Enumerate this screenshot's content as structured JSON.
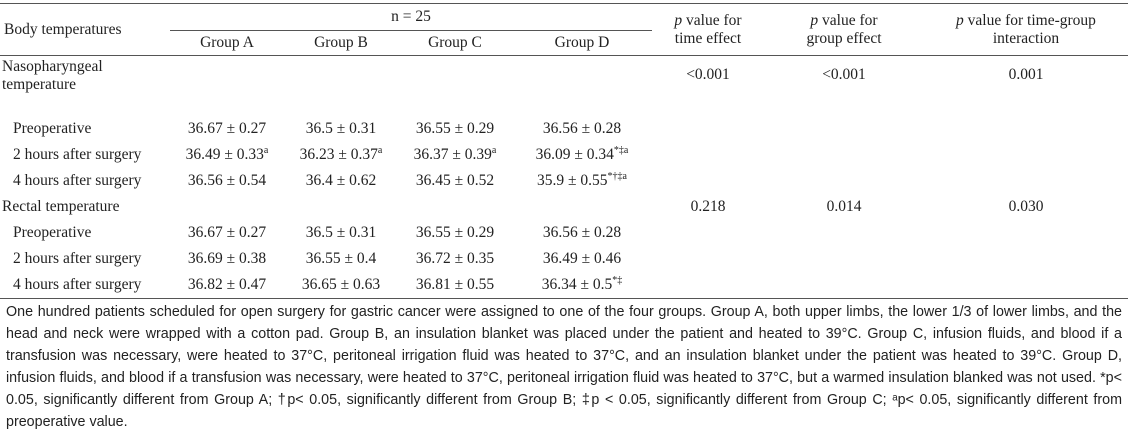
{
  "header": {
    "col0": "Body temperatures",
    "n_label": "n = 25",
    "groups": [
      "Group A",
      "Group B",
      "Group C",
      "Group D"
    ],
    "time_effect": {
      "p": "p",
      "l1": " value for",
      "l2": "time effect"
    },
    "group_effect": {
      "p": "p",
      "l1": " value for",
      "l2": "group effect"
    },
    "interaction": {
      "p": "p",
      "l1": " value for time-group",
      "l2": "interaction"
    }
  },
  "sections": [
    {
      "title_l1": "Nasopharyngeal",
      "title_l2": "temperature",
      "p_time": "<0.001",
      "p_group": "<0.001",
      "p_interaction": "0.001",
      "rows": [
        {
          "label": "Preoperative",
          "a": "36.67 ± 0.27",
          "b": "36.5 ± 0.31",
          "c": "36.55 ± 0.29",
          "d": "36.56 ± 0.28",
          "a_sup": "",
          "b_sup": "",
          "c_sup": "",
          "d_sup": ""
        },
        {
          "label": "2 hours after surgery",
          "a": "36.49 ± 0.33",
          "b": "36.23 ± 0.37",
          "c": "36.37 ± 0.39",
          "d": "36.09 ± 0.34",
          "a_sup": "a",
          "b_sup": "a",
          "c_sup": "a",
          "d_sup": "*‡a"
        },
        {
          "label": "4 hours after surgery",
          "a": "36.56 ± 0.54",
          "b": "36.4 ± 0.62",
          "c": "36.45 ± 0.52",
          "d": "35.9 ± 0.55",
          "a_sup": "",
          "b_sup": "",
          "c_sup": "",
          "d_sup": "*†‡a"
        }
      ]
    },
    {
      "title_l1": "Rectal temperature",
      "title_l2": "",
      "p_time": "0.218",
      "p_group": "0.014",
      "p_interaction": "0.030",
      "rows": [
        {
          "label": "Preoperative",
          "a": "36.67 ± 0.27",
          "b": "36.5 ± 0.31",
          "c": "36.55 ± 0.29",
          "d": "36.56 ± 0.28",
          "a_sup": "",
          "b_sup": "",
          "c_sup": "",
          "d_sup": ""
        },
        {
          "label": "2 hours after surgery",
          "a": "36.69 ± 0.38",
          "b": "36.55 ± 0.4",
          "c": "36.72 ± 0.35",
          "d": "36.49 ± 0.46",
          "a_sup": "",
          "b_sup": "",
          "c_sup": "",
          "d_sup": ""
        },
        {
          "label": "4 hours after surgery",
          "a": "36.82 ± 0.47",
          "b": "36.65 ± 0.63",
          "c": "36.81 ± 0.55",
          "d": "36.34 ± 0.5",
          "a_sup": "",
          "b_sup": "",
          "c_sup": "",
          "d_sup": "*‡"
        }
      ]
    }
  ],
  "footnote": "One hundred patients scheduled for open surgery for gastric cancer were assigned to one of the four groups. Group A, both upper limbs, the lower 1/3 of lower limbs, and the head and neck were wrapped with a cotton pad. Group B, an insulation blanket was placed under the patient and heated to 39°C. Group C, infusion fluids, and blood if a transfusion was necessary, were heated to 37°C, peritoneal irrigation fluid was heated to 37°C, and an insulation blanket under the patient was heated to 39°C. Group D, infusion fluids, and blood if a transfusion was necessary, were heated to 37°C, peritoneal irrigation fluid was heated to 37°C, but a warmed insulation blanked was not used. *p< 0.05, significantly different from Group A; †p< 0.05, significantly different from Group B; ‡p < 0.05, significantly different from Group C; ᵃp< 0.05, significantly different from preoperative value."
}
